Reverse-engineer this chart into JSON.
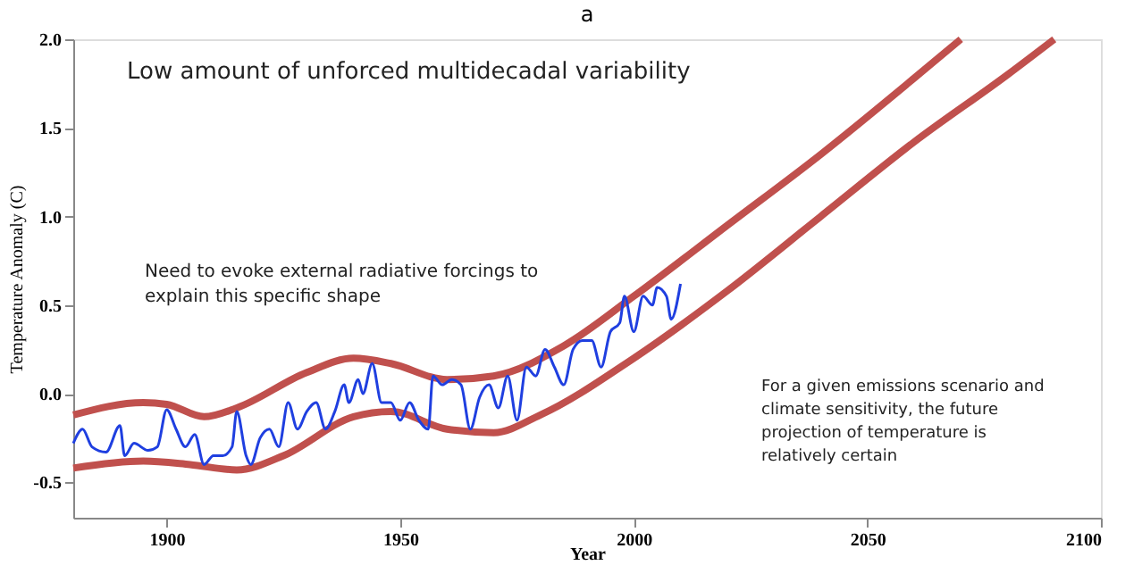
{
  "chart_data": {
    "type": "line",
    "title": "a",
    "xlabel": "Year",
    "ylabel": "Temperature Anomaly (C)",
    "xlim": [
      1880,
      2100
    ],
    "xticks": [
      1900,
      1950,
      2000,
      2050,
      2100
    ],
    "ylim": [
      -0.7,
      2.0
    ],
    "yticks": [
      {
        "value": -0.5,
        "label": "-0.5"
      },
      {
        "value": 0,
        "label": "0.0"
      },
      0.5,
      {
        "value": 1,
        "label": "1.0"
      },
      1.5,
      {
        "value": 2,
        "label": "2.0"
      }
    ],
    "grid": false,
    "marker": "none",
    "line_style": "solid",
    "annotations": [
      "Low amount of unforced multidecadal variability",
      "Need to evoke external radiative forcings to explain this specific shape",
      "For a given emissions scenario and climate sensitivity, the future projection of temperature is relatively certain"
    ],
    "series": [
      {
        "color": "#c0504d",
        "x": [
          1880,
          1895,
          1900,
          1908,
          1915,
          1930,
          1940,
          1948,
          1960,
          1970,
          1985,
          2000,
          2020,
          2040,
          2060,
          2070
        ],
        "values": [
          -0.12,
          -0.05,
          -0.06,
          -0.13,
          -0.08,
          0.12,
          0.2,
          0.17,
          0.08,
          0.1,
          0.27,
          0.55,
          0.95,
          1.35,
          1.78,
          2.0
        ]
      },
      {
        "color": "#c0504d",
        "x": [
          1880,
          1895,
          1905,
          1915,
          1925,
          1940,
          1948,
          1960,
          1970,
          1980,
          2000,
          2020,
          2040,
          2060,
          2080,
          2090
        ],
        "values": [
          -0.42,
          -0.38,
          -0.4,
          -0.43,
          -0.35,
          -0.13,
          -0.1,
          -0.2,
          -0.22,
          -0.12,
          0.2,
          0.58,
          1.0,
          1.42,
          1.8,
          2.0
        ]
      },
      {
        "color": "#1f3fe0",
        "x": [
          1880,
          1882,
          1884,
          1887,
          1890,
          1891,
          1893,
          1896,
          1898,
          1900,
          1902,
          1904,
          1906,
          1908,
          1910,
          1912,
          1914,
          1915,
          1917,
          1918,
          1920,
          1922,
          1924,
          1926,
          1928,
          1930,
          1932,
          1934,
          1936,
          1938,
          1939,
          1941,
          1942,
          1944,
          1946,
          1948,
          1950,
          1952,
          1954,
          1956,
          1957,
          1959,
          1961,
          1963,
          1965,
          1967,
          1969,
          1971,
          1973,
          1975,
          1977,
          1979,
          1981,
          1983,
          1985,
          1987,
          1989,
          1991,
          1993,
          1995,
          1997,
          1998,
          2000,
          2002,
          2004,
          2005,
          2007,
          2008,
          2010
        ],
        "values": [
          -0.28,
          -0.2,
          -0.3,
          -0.33,
          -0.18,
          -0.35,
          -0.28,
          -0.32,
          -0.3,
          -0.09,
          -0.2,
          -0.3,
          -0.23,
          -0.4,
          -0.35,
          -0.35,
          -0.3,
          -0.1,
          -0.35,
          -0.4,
          -0.25,
          -0.2,
          -0.3,
          -0.05,
          -0.2,
          -0.1,
          -0.05,
          -0.2,
          -0.1,
          0.05,
          -0.05,
          0.08,
          0.0,
          0.17,
          -0.05,
          -0.05,
          -0.15,
          -0.05,
          -0.15,
          -0.2,
          0.1,
          0.05,
          0.08,
          0.05,
          -0.2,
          -0.02,
          0.05,
          -0.08,
          0.1,
          -0.15,
          0.15,
          0.1,
          0.25,
          0.15,
          0.05,
          0.25,
          0.3,
          0.3,
          0.15,
          0.35,
          0.4,
          0.55,
          0.35,
          0.55,
          0.5,
          0.6,
          0.55,
          0.42,
          0.62
        ]
      }
    ]
  }
}
